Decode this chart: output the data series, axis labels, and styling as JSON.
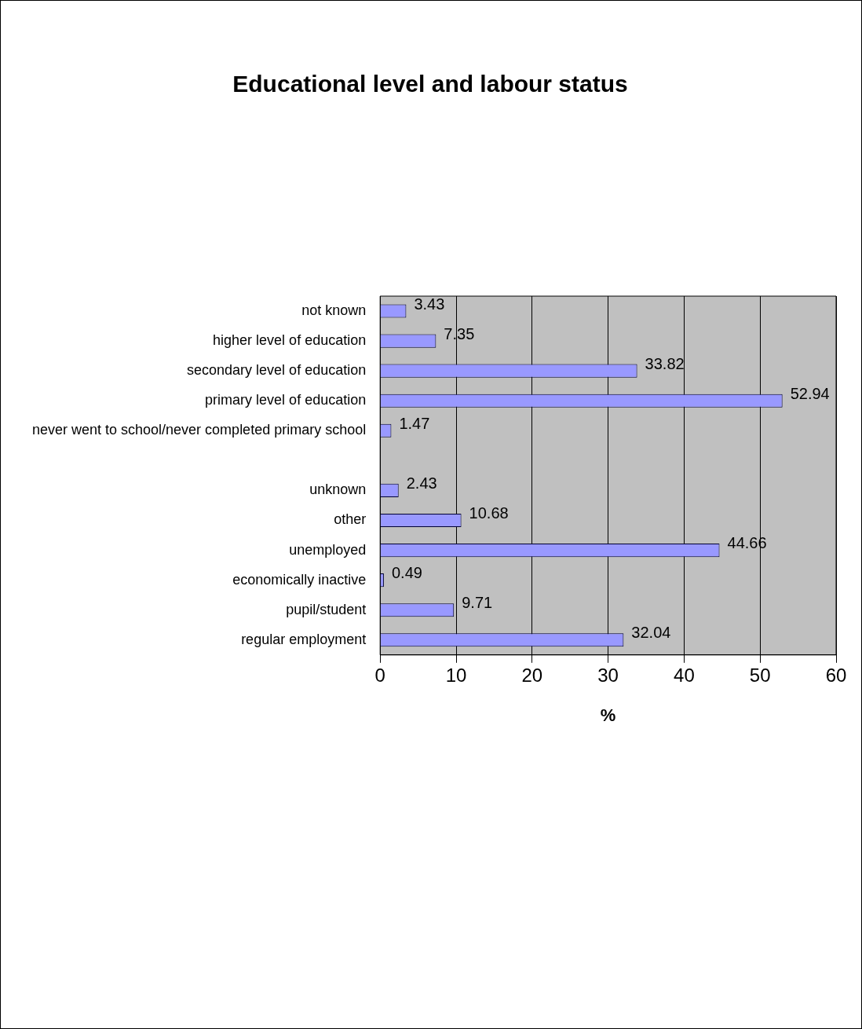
{
  "chart_data": {
    "type": "bar",
    "orientation": "horizontal",
    "title": "Educational level and labour status",
    "xlabel": "%",
    "categories": [
      "not known",
      "higher level of education",
      "secondary level of education",
      "primary level of education",
      "never went to school/never completed primary school",
      null,
      "unknown",
      "other",
      "unemployed",
      "economically inactive",
      "pupil/student",
      "regular employment"
    ],
    "values": [
      3.43,
      7.35,
      33.82,
      52.94,
      1.47,
      null,
      2.43,
      10.68,
      44.66,
      0.49,
      9.71,
      32.04
    ],
    "color": "#9999ff",
    "xlim": [
      0,
      60
    ],
    "xticks": [
      0,
      10,
      20,
      30,
      40,
      50,
      60
    ],
    "grid": "x",
    "data_labels": true
  }
}
